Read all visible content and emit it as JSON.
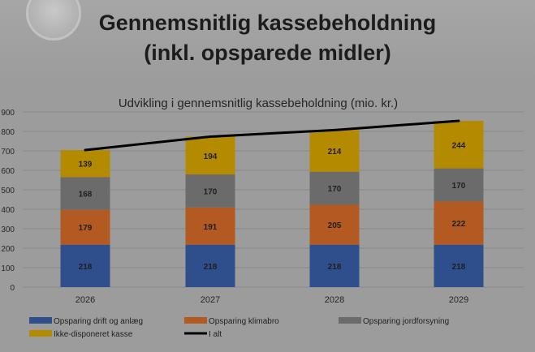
{
  "slide": {
    "title_line1": "Gennemsnitlig kassebeholdning",
    "title_line2": "(inkl. opsparede midler)"
  },
  "chart_data": {
    "type": "bar",
    "stacked": true,
    "title": "Udvikling i gennemsnitlig kassebeholdning (mio. kr.)",
    "categories": [
      "2026",
      "2027",
      "2028",
      "2029"
    ],
    "ylim": [
      0,
      900
    ],
    "yticks": [
      "0",
      "100",
      "200",
      "300",
      "400",
      "500",
      "600",
      "700",
      "800",
      "900"
    ],
    "ytick_labels_visible": [
      "0",
      "100",
      "200",
      "300",
      "400",
      "500",
      "600",
      "700",
      "800",
      "900"
    ],
    "grid": true,
    "legend_position": "bottom",
    "series": [
      {
        "name": "Opsparing drift og anlæg",
        "color": "#2e4f8c",
        "values": [
          218,
          218,
          218,
          218
        ]
      },
      {
        "name": "Opsparing klimabro",
        "color": "#b35a22",
        "values": [
          179,
          191,
          205,
          222
        ]
      },
      {
        "name": "Opsparing jordforsyning",
        "color": "#6b6b6b",
        "values": [
          168,
          170,
          170,
          170
        ]
      },
      {
        "name": "Ikke-disponeret kasse",
        "color": "#b38a00",
        "values": [
          139,
          194,
          214,
          244
        ]
      }
    ],
    "total_line": {
      "name": "I alt",
      "color": "#000000",
      "values": [
        704,
        773,
        807,
        854
      ]
    }
  }
}
